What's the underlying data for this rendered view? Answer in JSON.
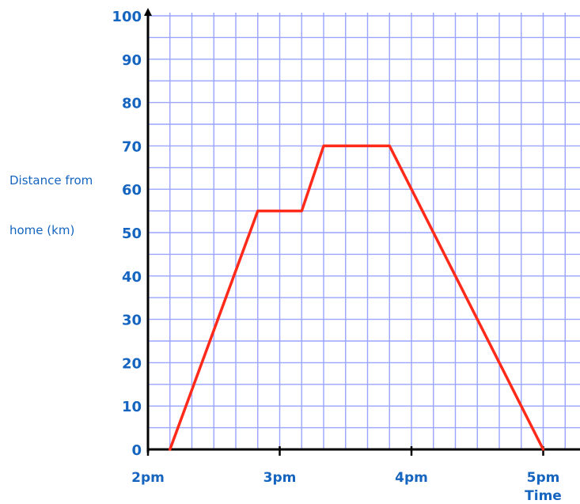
{
  "chart_data": {
    "type": "line",
    "title": "",
    "xlabel": "Time",
    "ylabel": "Distance from\nhome (km)",
    "ylabel_line1": "Distance from",
    "ylabel_line2": "home (km)",
    "xlim": [
      "2:00 pm",
      "5:15 pm"
    ],
    "ylim": [
      0,
      100
    ],
    "x_ticks": [
      "2pm",
      "3pm",
      "4pm",
      "5pm"
    ],
    "y_ticks": [
      "0",
      "10",
      "20",
      "30",
      "40",
      "50",
      "60",
      "70",
      "80",
      "90",
      "100"
    ],
    "grid": true,
    "x": [
      "2:10 pm",
      "2:50 pm",
      "3:10 pm",
      "3:20 pm",
      "3:50 pm",
      "5:00 pm"
    ],
    "series": [
      {
        "values": [
          0,
          55,
          55,
          70,
          70,
          0
        ]
      }
    ]
  },
  "colors": {
    "line": "#ff2a1a",
    "grid": "#9aa4ff",
    "axis": "#000000",
    "text": "#1565c0"
  }
}
